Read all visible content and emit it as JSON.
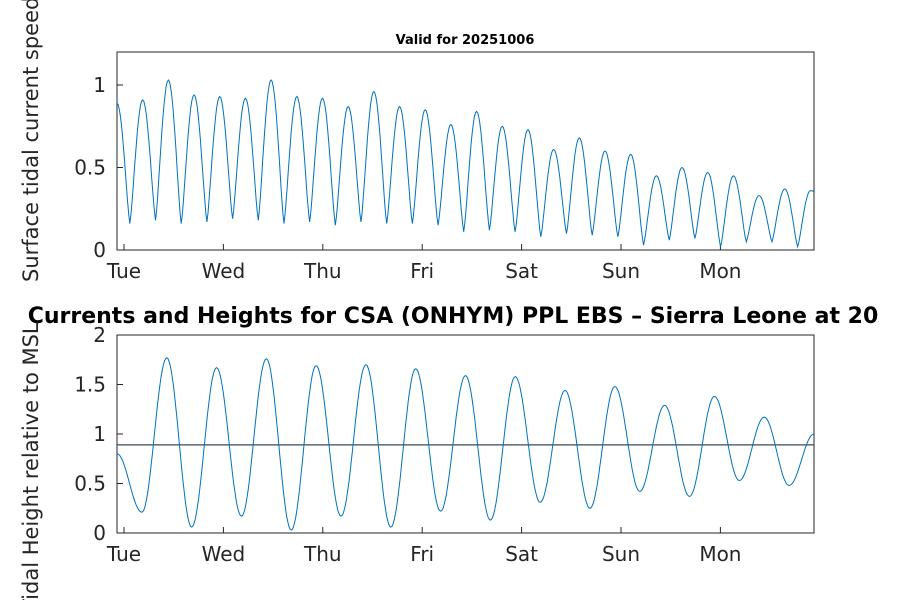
{
  "chart_data": [
    {
      "type": "line",
      "title": "Valid for 20251006",
      "xlabel": "",
      "ylabel": "Surface tidal current speed, knots",
      "x_tick_labels": [
        "Tue",
        "Wed",
        "Thu",
        "Fri",
        "Sat",
        "Sun",
        "Mon"
      ],
      "x_range_days": [
        0,
        7
      ],
      "ylim": [
        0,
        1.2
      ],
      "y_ticks": [
        0,
        0.5,
        1
      ],
      "y_tick_labels": [
        "0",
        "0.5",
        "1"
      ],
      "series": [
        {
          "name": "current speed",
          "cycles_per_day": 3.87,
          "peaks": [
            0.89,
            0.91,
            1.03,
            0.94,
            0.93,
            0.92,
            1.03,
            0.93,
            0.92,
            0.87,
            0.96,
            0.87,
            0.85,
            0.76,
            0.84,
            0.75,
            0.73,
            0.61,
            0.68,
            0.6,
            0.58,
            0.45,
            0.5,
            0.47,
            0.45,
            0.33,
            0.37,
            0.36
          ],
          "troughs": [
            0.16,
            0.18,
            0.16,
            0.17,
            0.19,
            0.18,
            0.16,
            0.17,
            0.15,
            0.17,
            0.16,
            0.16,
            0.15,
            0.11,
            0.12,
            0.11,
            0.08,
            0.1,
            0.09,
            0.08,
            0.03,
            0.06,
            0.07,
            0.02,
            0.05,
            0.05,
            0.02
          ]
        }
      ]
    },
    {
      "type": "line",
      "title": "Currents and Heights for CSA (ONHYM) PPL EBS  – Sierra Leone at 20",
      "xlabel": "",
      "ylabel": "Tidal Height relative to MSL",
      "x_tick_labels": [
        "Tue",
        "Wed",
        "Thu",
        "Fri",
        "Sat",
        "Sun",
        "Mon"
      ],
      "x_range_days": [
        0,
        7
      ],
      "ylim": [
        0,
        2
      ],
      "y_ticks": [
        0,
        0.5,
        1,
        1.5,
        2
      ],
      "y_tick_labels": [
        "0",
        "0.5",
        "1",
        "1.5",
        "2"
      ],
      "reference_line": 0.89,
      "series": [
        {
          "name": "tidal height",
          "start_value": 0.8,
          "end_value": 1.0,
          "peaks": [
            1.77,
            1.67,
            1.76,
            1.69,
            1.7,
            1.66,
            1.59,
            1.58,
            1.44,
            1.48,
            1.29,
            1.38,
            1.17
          ],
          "troughs": [
            0.21,
            0.06,
            0.17,
            0.03,
            0.17,
            0.06,
            0.22,
            0.13,
            0.31,
            0.25,
            0.42,
            0.37,
            0.53,
            0.48
          ]
        }
      ]
    }
  ]
}
